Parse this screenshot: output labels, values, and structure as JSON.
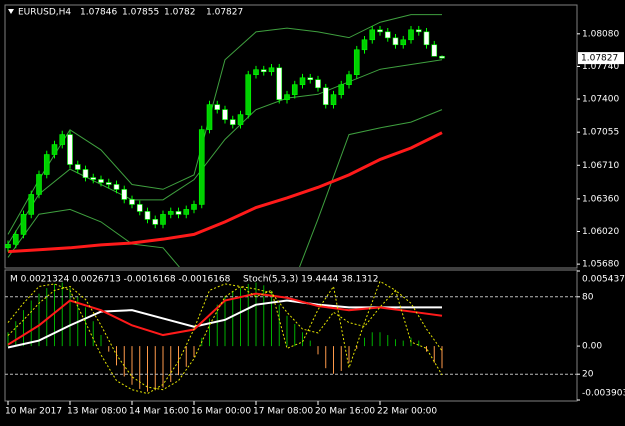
{
  "chart_data": [
    {
      "type": "candlestick",
      "title": "EURUSD,H4",
      "categories": [
        "10 Mar 2017",
        null,
        null,
        null,
        null,
        null,
        null,
        null,
        "13 Mar 08:00",
        null,
        null,
        null,
        null,
        null,
        null,
        null,
        "14 Mar 16:00",
        null,
        null,
        null,
        null,
        null,
        null,
        null,
        "16 Mar 00:00",
        null,
        null,
        null,
        null,
        null,
        null,
        null,
        "17 Mar 08:00",
        null,
        null,
        null,
        null,
        null,
        null,
        null,
        "20 Mar 16:00",
        null,
        null,
        null,
        null,
        null,
        null,
        null,
        "22 Mar 00:00",
        null,
        null,
        null,
        null,
        null,
        null,
        null,
        null
      ],
      "open": [
        1.0585,
        1.05886,
        1.0599,
        1.06198,
        1.06406,
        1.06614,
        1.06822,
        1.06926,
        1.0703,
        1.06718,
        1.06666,
        1.06582,
        1.06562,
        1.0653,
        1.0651,
        1.06458,
        1.06354,
        1.06302,
        1.06229,
        1.06146,
        1.06094,
        1.06198,
        1.06229,
        1.06198,
        1.0625,
        1.06302,
        1.07082,
        1.07342,
        1.0729,
        1.07186,
        1.07134,
        1.07238,
        1.07654,
        1.07706,
        1.07685,
        1.07726,
        1.07394,
        1.07446,
        1.0755,
        1.07622,
        1.07602,
        1.07518,
        1.07342,
        1.07446,
        1.0755,
        1.07654,
        1.07914,
        1.08018,
        1.08122,
        1.08101,
        1.08038,
        1.07966,
        1.08018,
        1.08122,
        1.08101,
        1.07966,
        1.07846
      ],
      "high": [
        1.05926,
        1.0603,
        1.06238,
        1.06446,
        1.06654,
        1.06862,
        1.06966,
        1.0707,
        1.0707,
        1.06758,
        1.06706,
        1.06622,
        1.06602,
        1.0657,
        1.0655,
        1.06498,
        1.06394,
        1.06342,
        1.06269,
        1.06186,
        1.06238,
        1.06269,
        1.06269,
        1.0629,
        1.06342,
        1.07122,
        1.07382,
        1.07382,
        1.0733,
        1.07226,
        1.07278,
        1.07694,
        1.07746,
        1.07746,
        1.07766,
        1.07766,
        1.07486,
        1.0759,
        1.07662,
        1.07662,
        1.07642,
        1.07558,
        1.07486,
        1.0759,
        1.07694,
        1.07954,
        1.08058,
        1.08162,
        1.08162,
        1.08141,
        1.08078,
        1.08058,
        1.08162,
        1.08162,
        1.08141,
        1.08006,
        1.07855
      ],
      "low": [
        1.0581,
        1.05846,
        1.0595,
        1.06158,
        1.06366,
        1.06574,
        1.06782,
        1.06886,
        1.06678,
        1.06626,
        1.06542,
        1.06522,
        1.0649,
        1.0647,
        1.06418,
        1.06314,
        1.06262,
        1.06189,
        1.06106,
        1.06054,
        1.06054,
        1.06158,
        1.06158,
        1.06158,
        1.0621,
        1.06262,
        1.07042,
        1.0725,
        1.07146,
        1.07094,
        1.07094,
        1.07198,
        1.07614,
        1.07645,
        1.07645,
        1.07354,
        1.07354,
        1.07406,
        1.0751,
        1.07562,
        1.07478,
        1.07302,
        1.07302,
        1.07406,
        1.0751,
        1.07614,
        1.07874,
        1.07978,
        1.08061,
        1.07998,
        1.07926,
        1.07926,
        1.07978,
        1.08061,
        1.07926,
        1.07853,
        1.0782
      ],
      "close": [
        1.05886,
        1.0599,
        1.06198,
        1.06406,
        1.06614,
        1.06822,
        1.06926,
        1.0703,
        1.06718,
        1.06666,
        1.06582,
        1.06562,
        1.0653,
        1.0651,
        1.06458,
        1.06354,
        1.06302,
        1.06229,
        1.06146,
        1.06094,
        1.06198,
        1.06229,
        1.06198,
        1.0625,
        1.06302,
        1.07082,
        1.07342,
        1.0729,
        1.07186,
        1.07134,
        1.07238,
        1.07654,
        1.07706,
        1.07685,
        1.07726,
        1.07394,
        1.07446,
        1.0755,
        1.07622,
        1.07602,
        1.07518,
        1.07342,
        1.07446,
        1.0755,
        1.07654,
        1.07914,
        1.08018,
        1.08122,
        1.08101,
        1.08038,
        1.07966,
        1.08018,
        1.08122,
        1.08101,
        1.07966,
        1.07846,
        1.07827
      ],
      "up_color": "#00d000",
      "down_color": "#ffffff",
      "wick_color": "#00ff00",
      "overlay_x": [
        0,
        4,
        8,
        12,
        16,
        20,
        24,
        28,
        32,
        36,
        40,
        44,
        48,
        52,
        56
      ],
      "overlays": [
        {
          "color": "#3fa03f",
          "width": 1,
          "values": [
            1.0599,
            1.0656,
            1.0708,
            1.0687,
            1.0651,
            1.0646,
            1.0661,
            1.0781,
            1.081,
            1.0814,
            1.081,
            1.0804,
            1.082,
            1.0828,
            1.0828
          ]
        },
        {
          "color": "#3fa03f",
          "width": 1,
          "values": [
            1.0589,
            1.0641,
            1.0667,
            1.0651,
            1.0635,
            1.0635,
            1.0656,
            1.0698,
            1.0729,
            1.0741,
            1.0745,
            1.0758,
            1.0771,
            1.0776,
            1.0781
          ]
        },
        {
          "color": "#3fa03f",
          "width": 1,
          "values": [
            1.0575,
            1.062,
            1.0625,
            1.0612,
            1.0589,
            1.0585,
            1.0547,
            1.05,
            1.05,
            1.0531,
            1.0615,
            1.0703,
            1.071,
            1.0716,
            1.0729
          ]
        },
        {
          "color": "#ff1a1a",
          "width": 3,
          "values": [
            1.0581,
            1.0583,
            1.0585,
            1.0588,
            1.059,
            1.0594,
            1.0599,
            1.0612,
            1.0627,
            1.0637,
            1.0648,
            1.0661,
            1.0677,
            1.0689,
            1.0705
          ]
        }
      ],
      "ylim": [
        1.0565,
        1.0837
      ],
      "yticks": [
        {
          "value": 1.0808,
          "label": "1.08080"
        },
        {
          "value": 1.0774,
          "label": "1.07740"
        },
        {
          "value": 1.074,
          "label": "1.07400"
        },
        1.07055,
        {
          "value": 1.0671,
          "label": "1.06710"
        },
        {
          "value": 1.0636,
          "label": "1.06360"
        },
        {
          "value": 1.0602,
          "label": "1.06020"
        },
        {
          "value": 1.0568,
          "label": "1.05680"
        }
      ]
    },
    {
      "type": "macd",
      "title": "M 0.0021324 0.0026713 -0.0016168 -0.0016168",
      "subtitle": "Stoch(5,3,3) 19.4444 38.1312",
      "histogram": [
        0.001,
        0.0018,
        0.0026,
        0.0033,
        0.0038,
        0.0042,
        0.0045,
        0.0046,
        0.0042,
        0.0036,
        0.0028,
        0.0018,
        0.0008,
        -0.0004,
        -0.0014,
        -0.0022,
        -0.0028,
        -0.0031,
        -0.0033,
        -0.0032,
        -0.003,
        -0.0026,
        -0.0021,
        -0.0015,
        -0.0008,
        0.0006,
        0.002,
        0.003,
        0.0036,
        0.004,
        0.0042,
        0.0045,
        0.0046,
        0.0044,
        0.004,
        0.003,
        0.0022,
        0.0016,
        0.001,
        0.0004,
        -0.0006,
        -0.0016,
        -0.002,
        -0.0018,
        -0.0012,
        -0.0002,
        0.0006,
        0.001,
        0.001,
        0.0008,
        0.0005,
        0.0004,
        0.0006,
        0.0004,
        -0.0004,
        -0.0012,
        -0.0016
      ],
      "up_color": "#00b000",
      "down_color": "#ff9a4a",
      "line_x": [
        0,
        4,
        8,
        12,
        16,
        20,
        24,
        28,
        32,
        36,
        40,
        44,
        48,
        52,
        56
      ],
      "lines": [
        {
          "color": "#ffffff",
          "values": [
            -0.0001,
            0.0004,
            0.0015,
            0.0025,
            0.0026,
            0.002,
            0.0014,
            0.0019,
            0.003,
            0.0033,
            0.003,
            0.0028,
            0.0028,
            0.0028,
            0.0028
          ]
        },
        {
          "color": "#ff1a1a",
          "values": [
            0.0001,
            0.0015,
            0.0033,
            0.0026,
            0.0015,
            0.0008,
            0.0012,
            0.0033,
            0.0038,
            0.0035,
            0.0029,
            0.0026,
            0.0028,
            0.0025,
            0.0022
          ]
        }
      ],
      "stoch_x": [
        0,
        2,
        4,
        6,
        8,
        10,
        12,
        14,
        16,
        18,
        20,
        22,
        24,
        26,
        28,
        30,
        32,
        34,
        36,
        38,
        40,
        42,
        44,
        46,
        48,
        50,
        52,
        54,
        56
      ],
      "stoch": [
        {
          "color": "#e6e600",
          "axis": "y2",
          "values": [
            60,
            75,
            88,
            90,
            85,
            60,
            35,
            15,
            8,
            5,
            12,
            30,
            55,
            85,
            90,
            88,
            80,
            85,
            40,
            45,
            70,
            88,
            25,
            60,
            92,
            85,
            45,
            40,
            19.4444
          ]
        },
        {
          "color": "#e6e600",
          "axis": "y2",
          "values": [
            50,
            62,
            75,
            85,
            88,
            78,
            58,
            35,
            18,
            10,
            8,
            15,
            32,
            58,
            80,
            88,
            86,
            83,
            68,
            55,
            52,
            68,
            60,
            57,
            72,
            85,
            75,
            55,
            38.1312
          ]
        }
      ],
      "ylim": [
        -0.003903,
        0.005437
      ],
      "yticks": [
        0.005437,
        {
          "value": 0,
          "label": "0.00"
        },
        -0.003903
      ],
      "y2lim": [
        0,
        100
      ],
      "y2ticks": [
        80,
        20
      ]
    }
  ]
}
